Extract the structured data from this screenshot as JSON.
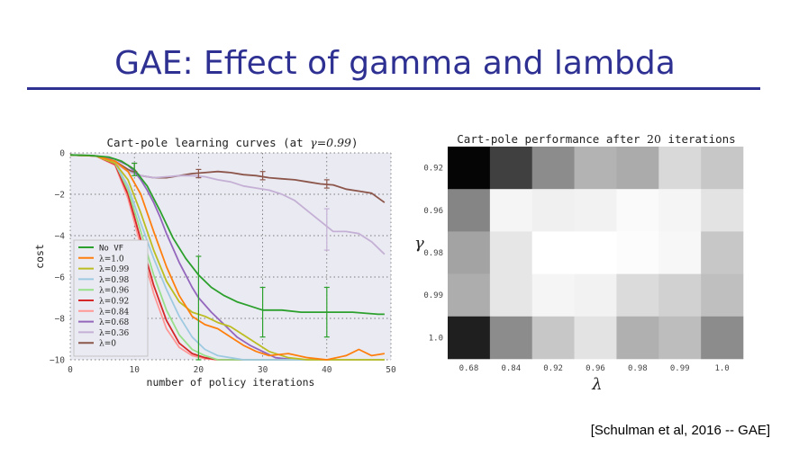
{
  "slide": {
    "title": "GAE: Effect of gamma and lambda",
    "citation": "[Schulman et al, 2016 -- GAE]"
  },
  "colors": {
    "title": "#2e3192",
    "plot_bg": "#eaeaf2"
  },
  "chart_data": [
    {
      "type": "line",
      "title_prefix": "Cart-pole learning curves (at ",
      "title_gamma": "γ=0.99",
      "title_suffix": ")",
      "xlabel": "number of policy iterations",
      "ylabel": "cost",
      "xlim": [
        0,
        50
      ],
      "ylim": [
        -10,
        0
      ],
      "xticks": [
        0,
        10,
        20,
        30,
        40,
        50
      ],
      "yticks": [
        0,
        -2,
        -4,
        -6,
        -8,
        -10
      ],
      "legend_position": "left",
      "series": [
        {
          "name": "No VF",
          "color": "#2ca02c",
          "x": [
            0,
            3,
            6,
            8,
            10,
            12,
            14,
            16,
            18,
            20,
            22,
            24,
            26,
            28,
            30,
            33,
            36,
            40,
            44,
            48,
            49
          ],
          "y": [
            -0.1,
            -0.12,
            -0.2,
            -0.4,
            -0.8,
            -1.6,
            -2.8,
            -4.1,
            -5.1,
            -5.9,
            -6.5,
            -6.9,
            -7.2,
            -7.4,
            -7.6,
            -7.6,
            -7.7,
            -7.7,
            -7.7,
            -7.8,
            -7.8
          ],
          "errorbars": [
            {
              "x": 10,
              "lo": -1.1,
              "hi": -0.5
            },
            {
              "x": 20,
              "lo": -10,
              "hi": -5
            },
            {
              "x": 30,
              "lo": -8.9,
              "hi": -6.5
            },
            {
              "x": 40,
              "lo": -8.9,
              "hi": -6.5
            }
          ]
        },
        {
          "name": "λ=1.0",
          "color": "#ff7f0e",
          "x": [
            0,
            4,
            7,
            9,
            11,
            13,
            15,
            17,
            19,
            21,
            23,
            25,
            27,
            29,
            31,
            34,
            37,
            40,
            43,
            45,
            47,
            49
          ],
          "y": [
            -0.1,
            -0.15,
            -0.4,
            -0.9,
            -2,
            -3.8,
            -5.5,
            -6.9,
            -7.9,
            -8.3,
            -8.5,
            -8.9,
            -9.3,
            -9.6,
            -9.8,
            -9.7,
            -9.9,
            -10,
            -9.8,
            -9.5,
            -9.8,
            -9.7
          ]
        },
        {
          "name": "λ=0.99",
          "color": "#bcbd22",
          "x": [
            0,
            4,
            7,
            9,
            11,
            13,
            15,
            17,
            19,
            21,
            23,
            25,
            27,
            29,
            31,
            34,
            37,
            40,
            44,
            49
          ],
          "y": [
            -0.1,
            -0.15,
            -0.5,
            -1.3,
            -2.9,
            -4.7,
            -6.2,
            -7.2,
            -7.7,
            -7.9,
            -8.2,
            -8.4,
            -8.8,
            -9.2,
            -9.6,
            -9.9,
            -10,
            -10,
            -10,
            -10
          ]
        },
        {
          "name": "λ=0.98",
          "color": "#9ecae1",
          "x": [
            0,
            4,
            7,
            9,
            11,
            13,
            15,
            17,
            19,
            21,
            23,
            25,
            27,
            30,
            35,
            40,
            49
          ],
          "y": [
            -0.1,
            -0.15,
            -0.5,
            -1.6,
            -3.4,
            -5.1,
            -6.6,
            -7.9,
            -8.9,
            -9.5,
            -9.8,
            -9.9,
            -10,
            -10,
            -10,
            -10,
            -10
          ]
        },
        {
          "name": "λ=0.96",
          "color": "#98df8a",
          "x": [
            0,
            4,
            7,
            9,
            11,
            13,
            15,
            17,
            19,
            21,
            23,
            25,
            30,
            35,
            40,
            49
          ],
          "y": [
            -0.1,
            -0.15,
            -0.5,
            -1.8,
            -3.8,
            -5.9,
            -7.6,
            -8.8,
            -9.5,
            -9.8,
            -10,
            -10,
            -10,
            -10,
            -10,
            -10
          ]
        },
        {
          "name": "λ=0.92",
          "color": "#d62728",
          "x": [
            0,
            4,
            7,
            9,
            11,
            13,
            15,
            17,
            19,
            21,
            23,
            25,
            30,
            35,
            40,
            49
          ],
          "y": [
            -0.1,
            -0.15,
            -0.55,
            -2,
            -4.2,
            -6.4,
            -8.1,
            -9.2,
            -9.7,
            -9.9,
            -10,
            -10,
            -10,
            -10,
            -10,
            -10
          ]
        },
        {
          "name": "λ=0.84",
          "color": "#ff9896",
          "x": [
            0,
            4,
            7,
            9,
            11,
            13,
            15,
            17,
            19,
            21,
            23,
            25,
            30,
            35,
            40,
            49
          ],
          "y": [
            -0.1,
            -0.15,
            -0.6,
            -2.2,
            -4.5,
            -6.8,
            -8.5,
            -9.4,
            -9.8,
            -9.95,
            -10,
            -10,
            -10,
            -10,
            -10,
            -10
          ]
        },
        {
          "name": "λ=0.68",
          "color": "#9467bd",
          "x": [
            0,
            4,
            7,
            9,
            10,
            11,
            12,
            13,
            14,
            15,
            16,
            17,
            18,
            19,
            20,
            22,
            24,
            26,
            28,
            30,
            32,
            35,
            40,
            49
          ],
          "y": [
            -0.1,
            -0.15,
            -0.3,
            -0.6,
            -0.9,
            -1.3,
            -1.8,
            -2.4,
            -3.1,
            -3.9,
            -4.6,
            -5.3,
            -5.9,
            -6.5,
            -7.0,
            -7.7,
            -8.3,
            -8.9,
            -9.3,
            -9.6,
            -9.9,
            -10,
            -10,
            -10
          ]
        },
        {
          "name": "λ=0.36",
          "color": "#c5b0d5",
          "x": [
            0,
            4,
            7,
            9,
            11,
            13,
            15,
            17,
            19,
            21,
            23,
            25,
            27,
            29,
            31,
            33,
            35,
            37,
            39,
            41,
            43,
            45,
            47,
            49
          ],
          "y": [
            -0.1,
            -0.15,
            -0.5,
            -0.9,
            -1.1,
            -1.2,
            -1.15,
            -1.1,
            -1.1,
            -1.15,
            -1.3,
            -1.4,
            -1.6,
            -1.7,
            -1.8,
            -2.0,
            -2.3,
            -2.8,
            -3.3,
            -3.8,
            -3.8,
            -3.9,
            -4.3,
            -4.9
          ],
          "errorbars": [
            {
              "x": 40,
              "lo": -4.7,
              "hi": -2.7
            }
          ]
        },
        {
          "name": "λ=0",
          "color": "#8c564b",
          "x": [
            0,
            4,
            7,
            9,
            11,
            13,
            15,
            17,
            19,
            21,
            23,
            25,
            27,
            29,
            31,
            33,
            35,
            37,
            39,
            41,
            43,
            45,
            47,
            49
          ],
          "y": [
            -0.1,
            -0.15,
            -0.4,
            -0.8,
            -1.1,
            -1.2,
            -1.2,
            -1.1,
            -1.0,
            -0.95,
            -0.9,
            -0.95,
            -1.05,
            -1.1,
            -1.2,
            -1.25,
            -1.3,
            -1.4,
            -1.5,
            -1.55,
            -1.75,
            -1.85,
            -1.95,
            -2.4
          ],
          "errorbars": [
            {
              "x": 10,
              "lo": -0.9,
              "hi": -0.5
            },
            {
              "x": 20,
              "lo": -1.2,
              "hi": -0.8
            },
            {
              "x": 30,
              "lo": -1.3,
              "hi": -0.9
            },
            {
              "x": 40,
              "lo": -1.7,
              "hi": -1.3
            }
          ]
        }
      ]
    },
    {
      "type": "heatmap",
      "title_prefix": "Cart-pole performance after ",
      "title_num": "20",
      "title_suffix": " iterations",
      "xlabel": "λ",
      "ylabel": "γ",
      "x_categories": [
        "0.68",
        "0.84",
        "0.92",
        "0.96",
        "0.98",
        "0.99",
        "1.0"
      ],
      "y_categories": [
        "0.92",
        "0.96",
        "0.98",
        "0.99",
        "1.0"
      ],
      "colormap": "gray (dark = worse / higher cost)",
      "values": [
        [
          0.02,
          0.25,
          0.55,
          0.7,
          0.67,
          0.85,
          0.78
        ],
        [
          0.52,
          0.96,
          0.94,
          0.95,
          0.98,
          0.96,
          0.89
        ],
        [
          0.64,
          0.9,
          1.0,
          1.0,
          0.99,
          0.97,
          0.78
        ],
        [
          0.68,
          0.9,
          0.96,
          0.95,
          0.86,
          0.82,
          0.75
        ],
        [
          0.12,
          0.55,
          0.78,
          0.89,
          0.69,
          0.74,
          0.55
        ]
      ]
    }
  ]
}
